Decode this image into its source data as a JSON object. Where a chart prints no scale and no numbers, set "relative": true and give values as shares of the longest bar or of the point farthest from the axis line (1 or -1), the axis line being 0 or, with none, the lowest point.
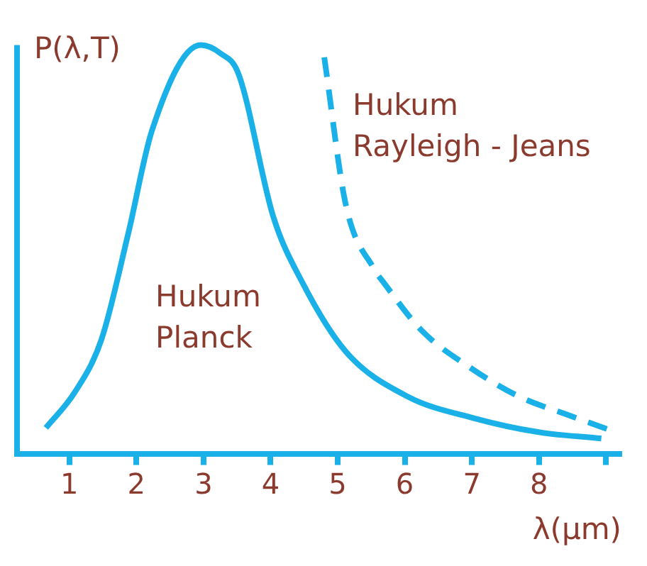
{
  "chart_data": {
    "type": "line",
    "relative": true,
    "ylabel": "P(λ,T)",
    "xlabel": "λ(µm)",
    "xlim": [
      0.22,
      9.23
    ],
    "xticks": [
      1,
      2,
      3,
      4,
      5,
      6,
      7,
      8,
      {
        "value": 9,
        "label": null
      }
    ],
    "grid": false,
    "legend": false,
    "marker": "none",
    "series": [
      {
        "name": "Hukum Planck",
        "color": "#1ab0e8",
        "line_style": "solid",
        "x": [
          0.65,
          1.08,
          1.48,
          1.88,
          2.23,
          2.96,
          3.25,
          3.52,
          4.04,
          4.47,
          5.12,
          6.04,
          7.05,
          7.98,
          8.93
        ],
        "values": [
          0.063,
          0.15,
          0.28,
          0.54,
          0.79,
          1.0,
          0.98,
          0.93,
          0.58,
          0.42,
          0.25,
          0.14,
          0.086,
          0.053,
          0.037
        ]
      },
      {
        "name": "Hukum Rayleigh - Jeans",
        "color": "#1ab0e8",
        "line_style": "dashed",
        "x": [
          4.8,
          5.12,
          5.55,
          5.68,
          6.26,
          6.98,
          7.7,
          8.41,
          9.02
        ],
        "values": [
          0.97,
          0.61,
          0.45,
          0.42,
          0.3,
          0.21,
          0.14,
          0.096,
          0.06
        ]
      }
    ]
  }
}
